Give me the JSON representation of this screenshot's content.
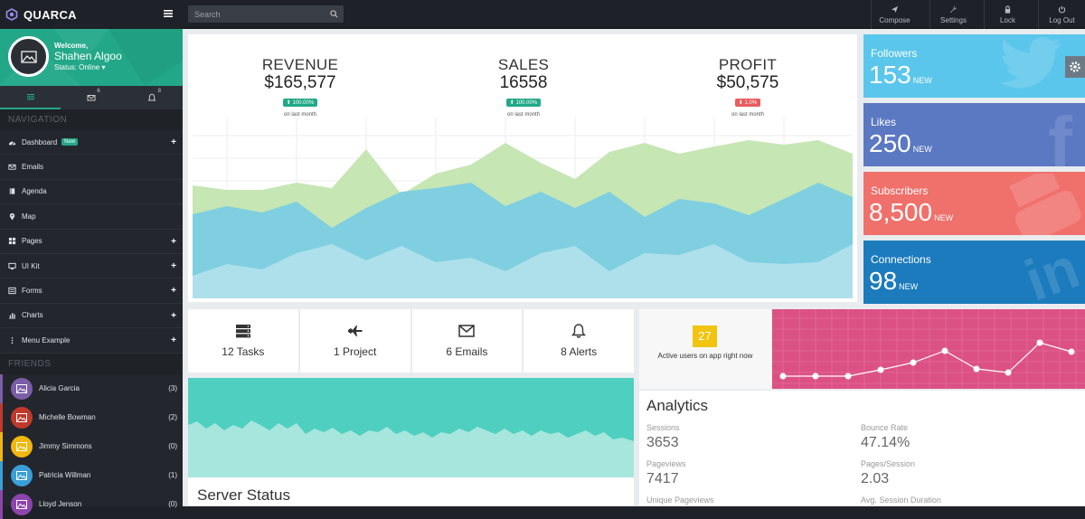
{
  "brand": {
    "name": "QUARCA"
  },
  "search": {
    "placeholder": "Search"
  },
  "topnav": [
    {
      "label": "Compose",
      "icon": "paper-plane-icon"
    },
    {
      "label": "Settings",
      "icon": "wrench-icon"
    },
    {
      "label": "Lock",
      "icon": "lock-icon"
    },
    {
      "label": "Log Out",
      "icon": "power-icon"
    }
  ],
  "profile": {
    "welcome": "Welcome,",
    "name": "Shahen Algoo",
    "status": "Status: Online"
  },
  "sidebar_tabs": {
    "messages_count": "6",
    "notifications_count": "8"
  },
  "nav": {
    "heading": "NAVIGATION",
    "items": [
      {
        "label": "Dashboard",
        "badge": "New",
        "icon": "dashboard-icon"
      },
      {
        "label": "Emails",
        "icon": "envelope-icon"
      },
      {
        "label": "Agenda",
        "icon": "book-icon"
      },
      {
        "label": "Map",
        "icon": "map-marker-icon"
      },
      {
        "label": "Pages",
        "icon": "pages-icon"
      },
      {
        "label": "UI Kit",
        "icon": "desktop-icon"
      },
      {
        "label": "Forms",
        "icon": "form-icon"
      },
      {
        "label": "Charts",
        "icon": "bar-chart-icon"
      },
      {
        "label": "Menu Example",
        "icon": "ellipsis-icon"
      }
    ]
  },
  "friends": {
    "heading": "FRIENDS",
    "items": [
      {
        "name": "Alicia Garcia",
        "count": "(3)",
        "color": "#7b5ea7"
      },
      {
        "name": "Michelle Bowman",
        "count": "(2)",
        "color": "#c0392b"
      },
      {
        "name": "Jimmy Simmons",
        "count": "(0)",
        "color": "#f1b70e"
      },
      {
        "name": "Patricia Willman",
        "count": "(1)",
        "color": "#3a9fd8"
      },
      {
        "name": "Lloyd Jenson",
        "count": "(0)",
        "color": "#8e44ad"
      }
    ]
  },
  "stats": [
    {
      "title": "REVENUE",
      "value": "$165,577",
      "change": "100.00%",
      "trend": "up",
      "color": "#22a889",
      "note": "on last month"
    },
    {
      "title": "SALES",
      "value": "16558",
      "change": "100.00%",
      "trend": "up",
      "color": "#22a889",
      "note": "on last month"
    },
    {
      "title": "PROFIT",
      "value": "$50,575",
      "change": "1.0%",
      "trend": "down",
      "color": "#e85c5c",
      "note": "on last month"
    }
  ],
  "social": [
    {
      "label": "Followers",
      "value": "153",
      "suffix": "NEW",
      "color": "#5bc6ec",
      "brand": "twitter-icon"
    },
    {
      "label": "Likes",
      "value": "250",
      "suffix": "NEW",
      "color": "#5b78c2",
      "brand": "facebook-icon"
    },
    {
      "label": "Subscribers",
      "value": "8,500",
      "suffix": "NEW",
      "color": "#f0706b",
      "brand": "youtube-icon"
    },
    {
      "label": "Connections",
      "value": "98",
      "suffix": "NEW",
      "color": "#1c7bbd",
      "brand": "linkedin-icon"
    }
  ],
  "tiles": [
    {
      "label": "12 Tasks",
      "icon": "server-icon"
    },
    {
      "label": "1 Project",
      "icon": "jet-icon"
    },
    {
      "label": "6 Emails",
      "icon": "envelope-icon"
    },
    {
      "label": "8 Alerts",
      "icon": "bell-icon"
    }
  ],
  "active_users": {
    "count": "27",
    "label": "Active users on app right now"
  },
  "server": {
    "title": "Server Status"
  },
  "analytics": {
    "title": "Analytics",
    "metrics": [
      {
        "label": "Sessions",
        "value": "3653"
      },
      {
        "label": "Bounce Rate",
        "value": "47.14%"
      },
      {
        "label": "Pageviews",
        "value": "7417"
      },
      {
        "label": "Pages/Session",
        "value": "2.03"
      },
      {
        "label": "Unique Pageviews",
        "value": ""
      },
      {
        "label": "Avg. Session Duration",
        "value": ""
      }
    ]
  },
  "colors": {
    "accent": "#22a889",
    "chart_green": "#c6e6b4",
    "chart_blue": "#7fcfe0",
    "chart_lightblue": "#aee0ec",
    "server_teal": "#4fcfbf",
    "pink": "#dc5184"
  }
}
